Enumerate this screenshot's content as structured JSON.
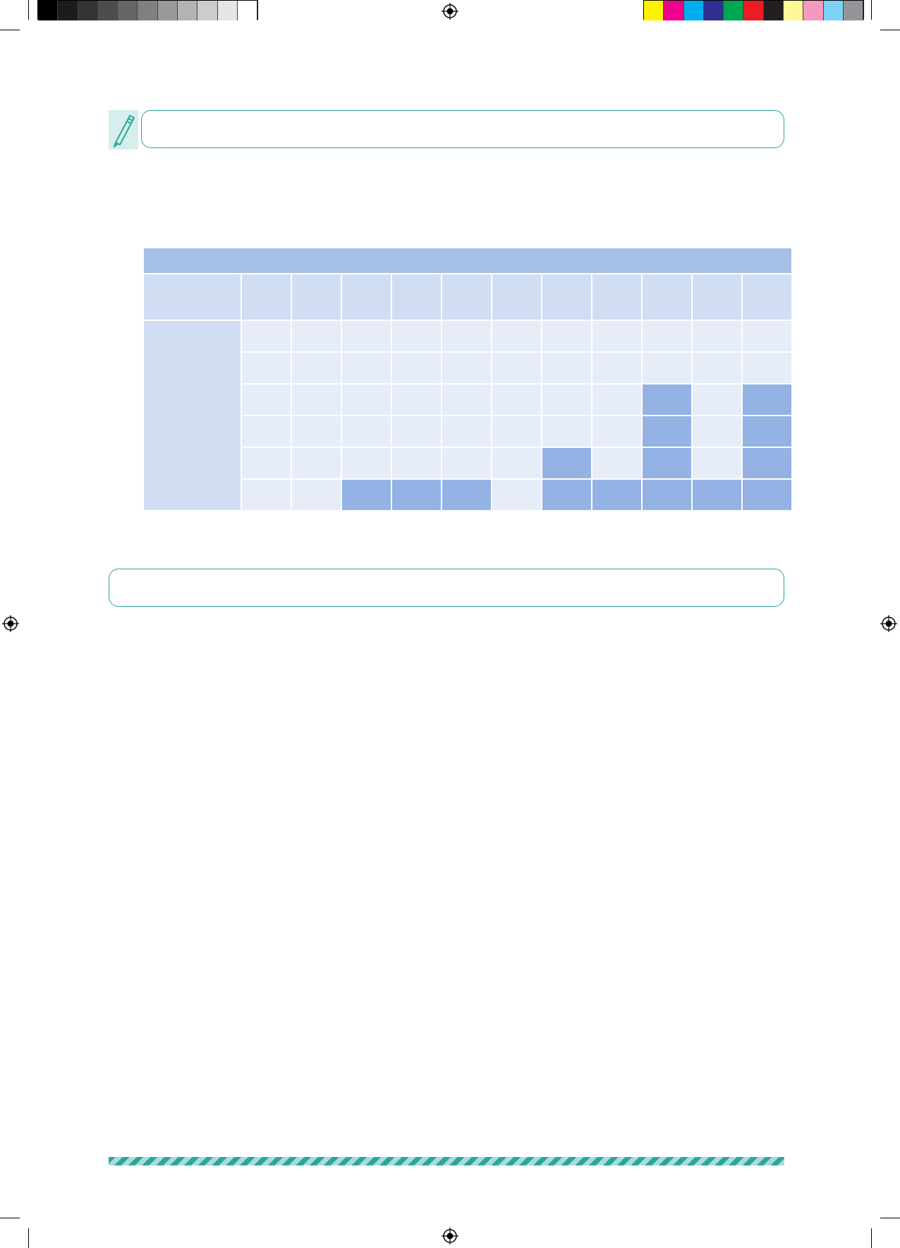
{
  "print_marks": {
    "gray_swatches": [
      "#000000",
      "#1c1c1c",
      "#333333",
      "#4d4d4d",
      "#666666",
      "#808080",
      "#999999",
      "#b3b3b3",
      "#cccccc",
      "#e6e6e6",
      "#ffffff"
    ],
    "color_swatches": [
      "#fff200",
      "#ec008c",
      "#00aeef",
      "#2e3192",
      "#00a651",
      "#ed1c24",
      "#231f20",
      "#fff799",
      "#f49ac1",
      "#7dd3f7",
      "#939598"
    ]
  },
  "icons": {
    "pen": "pen-icon",
    "registration": "registration-mark-icon"
  },
  "colors": {
    "teal_accent": "#2aa6a0",
    "table_header": "#a6bfe6",
    "table_subheader": "#d1ddf3",
    "cell_empty": "#e6ecf8",
    "cell_filled": "#94b2e3"
  },
  "table": {
    "column_count": 11,
    "row_count": 6,
    "filled_cells": [
      [
        false,
        false,
        false,
        false,
        false,
        false,
        false,
        false,
        false,
        false,
        false
      ],
      [
        false,
        false,
        false,
        false,
        false,
        false,
        false,
        false,
        false,
        false,
        false
      ],
      [
        false,
        false,
        false,
        false,
        false,
        false,
        false,
        false,
        true,
        false,
        true
      ],
      [
        false,
        false,
        false,
        false,
        false,
        false,
        false,
        false,
        true,
        false,
        true
      ],
      [
        false,
        false,
        false,
        false,
        false,
        false,
        true,
        false,
        true,
        false,
        true
      ],
      [
        false,
        false,
        true,
        true,
        true,
        false,
        true,
        true,
        true,
        true,
        true
      ]
    ]
  }
}
